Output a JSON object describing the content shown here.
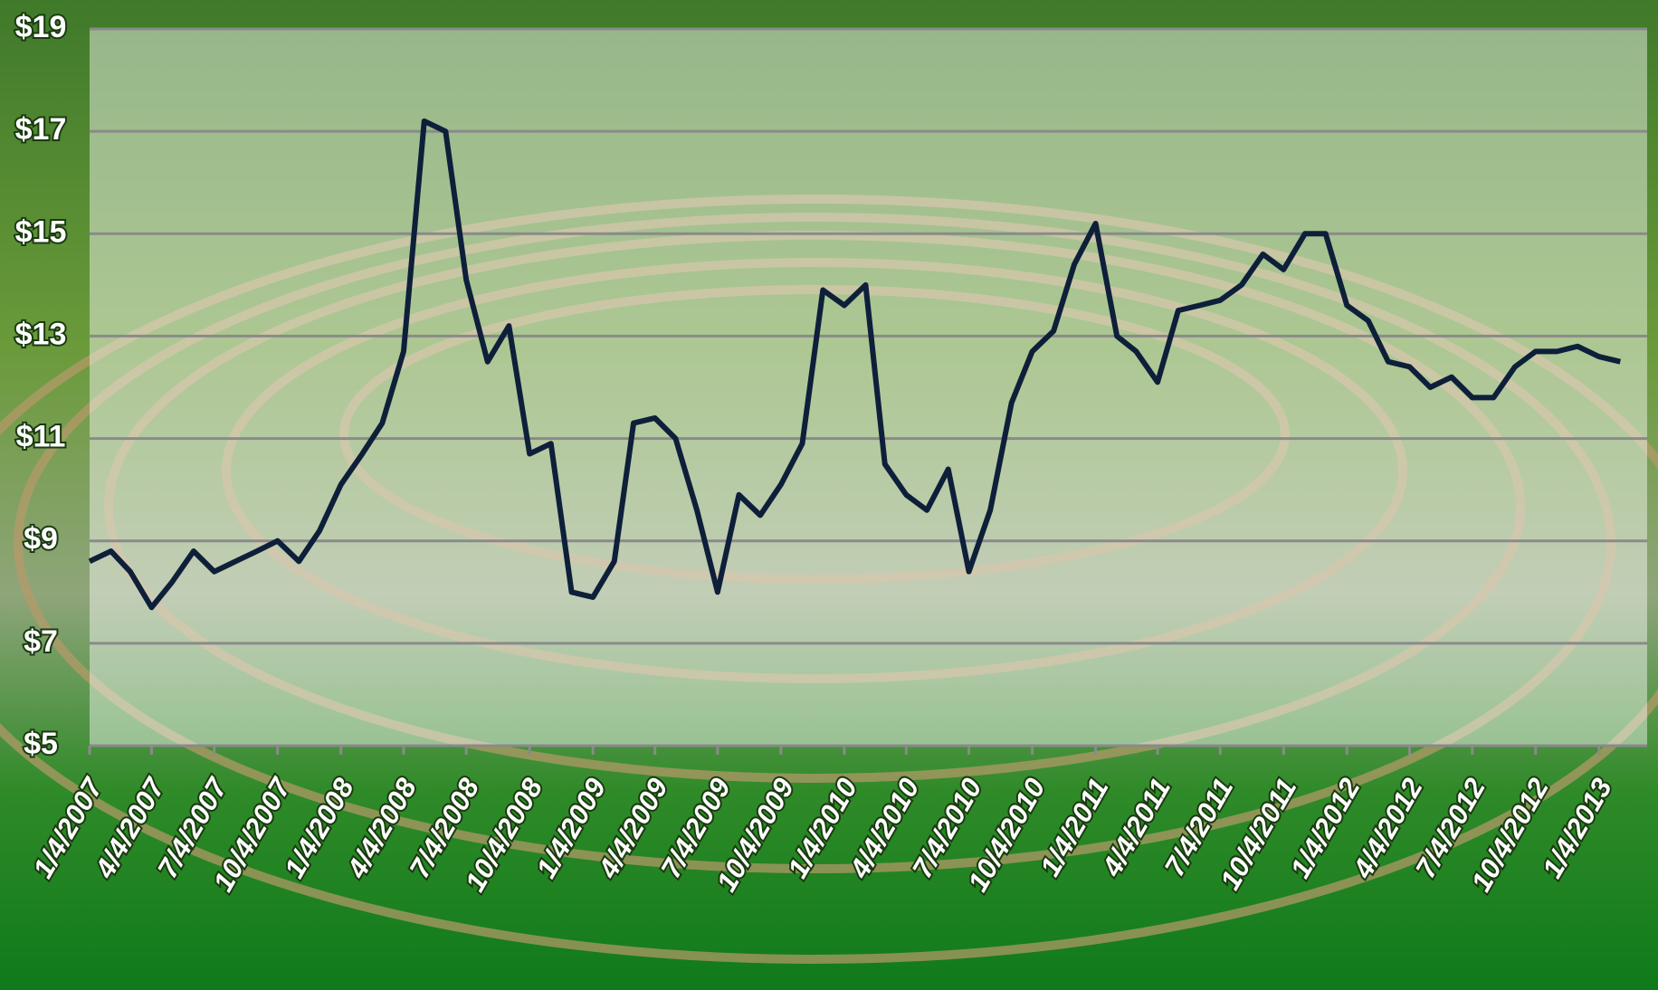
{
  "chart_data": {
    "type": "line",
    "x": [
      "1/4/2007",
      "2/4/2007",
      "3/4/2007",
      "4/4/2007",
      "5/4/2007",
      "6/4/2007",
      "7/4/2007",
      "8/4/2007",
      "9/4/2007",
      "10/4/2007",
      "11/4/2007",
      "12/4/2007",
      "1/4/2008",
      "2/4/2008",
      "3/4/2008",
      "4/4/2008",
      "5/4/2008",
      "6/4/2008",
      "7/4/2008",
      "8/4/2008",
      "9/4/2008",
      "10/4/2008",
      "11/4/2008",
      "12/4/2008",
      "1/4/2009",
      "2/4/2009",
      "3/4/2009",
      "4/4/2009",
      "5/4/2009",
      "6/4/2009",
      "7/4/2009",
      "8/4/2009",
      "9/4/2009",
      "10/4/2009",
      "11/4/2009",
      "12/4/2009",
      "1/4/2010",
      "2/4/2010",
      "3/4/2010",
      "4/4/2010",
      "5/4/2010",
      "6/4/2010",
      "7/4/2010",
      "8/4/2010",
      "9/4/2010",
      "10/4/2010",
      "11/4/2010",
      "12/4/2010",
      "1/4/2011",
      "2/4/2011",
      "3/4/2011",
      "4/4/2011",
      "5/4/2011",
      "6/4/2011",
      "7/4/2011",
      "8/4/2011",
      "9/4/2011",
      "10/4/2011",
      "11/4/2011",
      "12/4/2011",
      "1/4/2012",
      "2/4/2012",
      "3/4/2012",
      "4/4/2012",
      "5/4/2012",
      "6/4/2012",
      "7/4/2012",
      "8/4/2012",
      "9/4/2012",
      "10/4/2012",
      "11/4/2012",
      "12/4/2012",
      "1/4/2013",
      "2/4/2013"
    ],
    "series": [
      {
        "color": "#0e1f3a",
        "values": [
          8.6,
          8.8,
          8.4,
          7.7,
          8.2,
          8.8,
          8.4,
          8.6,
          8.8,
          9.0,
          8.6,
          9.2,
          10.1,
          10.7,
          11.3,
          12.7,
          17.2,
          17.0,
          14.1,
          12.5,
          13.2,
          10.7,
          10.9,
          8.0,
          7.9,
          8.6,
          11.3,
          11.4,
          11.0,
          9.6,
          8.0,
          9.9,
          9.5,
          10.1,
          10.9,
          13.9,
          13.6,
          14.0,
          10.5,
          9.9,
          9.6,
          10.4,
          8.4,
          9.6,
          11.7,
          12.7,
          13.1,
          14.4,
          15.2,
          13.0,
          12.7,
          12.1,
          13.5,
          13.6,
          13.7,
          14.0,
          14.6,
          14.3,
          15.0,
          15.0,
          13.6,
          13.3,
          12.5,
          12.4,
          12.0,
          12.2,
          11.8,
          11.8,
          12.4,
          12.7,
          12.7,
          12.8,
          12.6,
          12.5
        ]
      }
    ],
    "xlim": [
      "1/4/2007",
      "3/15/2013"
    ],
    "xticks": [
      "1/4/2007",
      "4/4/2007",
      "7/4/2007",
      "10/4/2007",
      "1/4/2008",
      "4/4/2008",
      "7/4/2008",
      "10/4/2008",
      "1/4/2009",
      "4/4/2009",
      "7/4/2009",
      "10/4/2009",
      "1/4/2010",
      "4/4/2010",
      "7/4/2010",
      "10/4/2010",
      "1/4/2011",
      "4/4/2011",
      "7/4/2011",
      "10/4/2011",
      "1/4/2012",
      "4/4/2012",
      "7/4/2012",
      "10/4/2012",
      "1/4/2013"
    ],
    "ylim": [
      5,
      19
    ],
    "yticks": [
      {
        "value": 5,
        "label": "$5"
      },
      {
        "value": 7,
        "label": "$7"
      },
      {
        "value": 9,
        "label": "$9"
      },
      {
        "value": 11,
        "label": "$11"
      },
      {
        "value": 13,
        "label": "$13"
      },
      {
        "value": 15,
        "label": "$15"
      },
      {
        "value": 17,
        "label": "$17"
      },
      {
        "value": 19,
        "label": "$19"
      }
    ],
    "grid": true
  }
}
